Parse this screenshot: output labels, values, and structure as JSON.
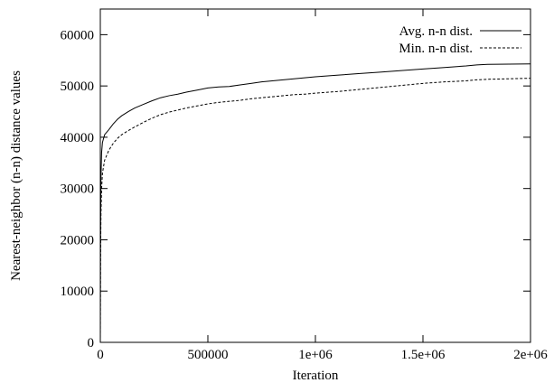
{
  "chart_data": {
    "type": "line",
    "title": "",
    "xlabel": "Iteration",
    "ylabel": "Nearest-neighbor (n-n) distance values",
    "xlim": [
      0,
      2000000
    ],
    "ylim": [
      0,
      65000
    ],
    "x_ticks": [
      {
        "value": 0,
        "label": "0"
      },
      {
        "value": 500000,
        "label": "500000"
      },
      {
        "value": 1000000,
        "label": "1e+06"
      },
      {
        "value": 1500000,
        "label": "1.5e+06"
      },
      {
        "value": 2000000,
        "label": "2e+06"
      }
    ],
    "y_ticks": [
      {
        "value": 0,
        "label": "0"
      },
      {
        "value": 10000,
        "label": "10000"
      },
      {
        "value": 20000,
        "label": "20000"
      },
      {
        "value": 30000,
        "label": "30000"
      },
      {
        "value": 40000,
        "label": "40000"
      },
      {
        "value": 50000,
        "label": "50000"
      },
      {
        "value": 60000,
        "label": "60000"
      }
    ],
    "grid": false,
    "legend_position": "top-right",
    "series": [
      {
        "name": "Avg. n-n dist.",
        "style": "solid",
        "color": "#000000",
        "points": [
          [
            0,
            0
          ],
          [
            1000,
            20000
          ],
          [
            3000,
            32000
          ],
          [
            6000,
            37000
          ],
          [
            10000,
            39000
          ],
          [
            20000,
            40500
          ],
          [
            40000,
            41500
          ],
          [
            60000,
            42600
          ],
          [
            80000,
            43500
          ],
          [
            100000,
            44200
          ],
          [
            130000,
            45000
          ],
          [
            160000,
            45700
          ],
          [
            200000,
            46400
          ],
          [
            240000,
            47100
          ],
          [
            280000,
            47700
          ],
          [
            320000,
            48100
          ],
          [
            360000,
            48400
          ],
          [
            400000,
            48800
          ],
          [
            450000,
            49200
          ],
          [
            500000,
            49600
          ],
          [
            550000,
            49800
          ],
          [
            600000,
            49900
          ],
          [
            650000,
            50200
          ],
          [
            700000,
            50500
          ],
          [
            750000,
            50800
          ],
          [
            800000,
            51000
          ],
          [
            850000,
            51200
          ],
          [
            900000,
            51400
          ],
          [
            950000,
            51600
          ],
          [
            1000000,
            51800
          ],
          [
            1100000,
            52100
          ],
          [
            1200000,
            52400
          ],
          [
            1300000,
            52700
          ],
          [
            1400000,
            53000
          ],
          [
            1500000,
            53300
          ],
          [
            1600000,
            53600
          ],
          [
            1700000,
            53900
          ],
          [
            1750000,
            54100
          ],
          [
            1800000,
            54200
          ],
          [
            1900000,
            54250
          ],
          [
            2000000,
            54300
          ]
        ]
      },
      {
        "name": "Min. n-n dist.",
        "style": "dashed",
        "color": "#000000",
        "points": [
          [
            0,
            0
          ],
          [
            1000,
            15000
          ],
          [
            3000,
            25000
          ],
          [
            6000,
            30000
          ],
          [
            10000,
            33000
          ],
          [
            20000,
            35500
          ],
          [
            40000,
            37500
          ],
          [
            60000,
            38800
          ],
          [
            80000,
            39800
          ],
          [
            100000,
            40500
          ],
          [
            130000,
            41300
          ],
          [
            160000,
            42000
          ],
          [
            200000,
            42900
          ],
          [
            240000,
            43700
          ],
          [
            280000,
            44400
          ],
          [
            320000,
            44900
          ],
          [
            360000,
            45300
          ],
          [
            400000,
            45700
          ],
          [
            450000,
            46100
          ],
          [
            500000,
            46500
          ],
          [
            550000,
            46800
          ],
          [
            600000,
            47000
          ],
          [
            650000,
            47200
          ],
          [
            700000,
            47500
          ],
          [
            750000,
            47700
          ],
          [
            800000,
            47900
          ],
          [
            850000,
            48100
          ],
          [
            900000,
            48300
          ],
          [
            950000,
            48400
          ],
          [
            1000000,
            48600
          ],
          [
            1100000,
            48900
          ],
          [
            1200000,
            49300
          ],
          [
            1300000,
            49700
          ],
          [
            1400000,
            50100
          ],
          [
            1500000,
            50500
          ],
          [
            1600000,
            50800
          ],
          [
            1700000,
            51000
          ],
          [
            1750000,
            51200
          ],
          [
            1800000,
            51300
          ],
          [
            1900000,
            51400
          ],
          [
            2000000,
            51500
          ]
        ]
      }
    ]
  }
}
